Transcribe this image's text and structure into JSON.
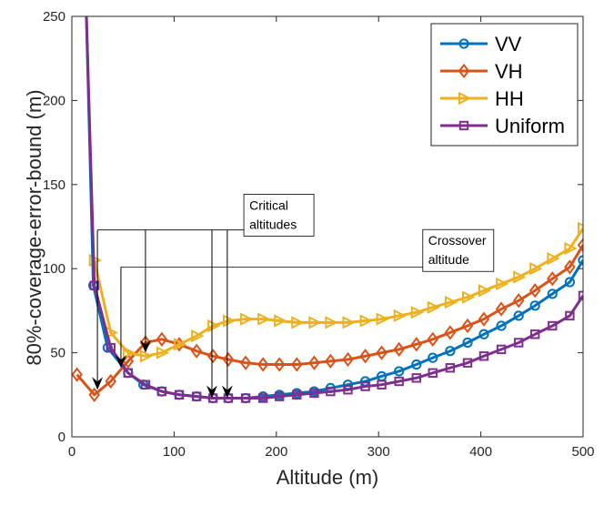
{
  "chart_data": {
    "type": "line",
    "title": "",
    "xlabel": "Altitude (m)",
    "ylabel": "80%-coverage-error-bound (m)",
    "xlim": [
      0,
      500
    ],
    "ylim": [
      0,
      250
    ],
    "xticks": [
      0,
      100,
      200,
      300,
      400,
      500
    ],
    "yticks": [
      0,
      50,
      100,
      150,
      200,
      250
    ],
    "grid": false,
    "legend_position": "top-right",
    "series": [
      {
        "name": "VV",
        "color": "#0072BD",
        "marker": "circle",
        "x": [
          21,
          35,
          55,
          70,
          88,
          105,
          122,
          138,
          153,
          170,
          187,
          203,
          220,
          237,
          253,
          270,
          287,
          303,
          320,
          337,
          353,
          370,
          387,
          403,
          420,
          437,
          453,
          470,
          487,
          500
        ],
        "y": [
          90,
          53,
          38,
          31,
          27,
          25,
          24,
          23,
          23,
          23,
          24,
          25,
          26,
          27,
          29,
          31,
          33,
          36,
          39,
          43,
          47,
          51,
          56,
          61,
          66,
          72,
          78,
          85,
          92,
          105
        ]
      },
      {
        "name": "VH",
        "color": "#D95319",
        "marker": "diamond",
        "x": [
          5,
          22,
          38,
          55,
          72,
          88,
          105,
          122,
          138,
          153,
          170,
          187,
          203,
          220,
          237,
          253,
          270,
          287,
          303,
          320,
          337,
          353,
          370,
          387,
          403,
          420,
          437,
          453,
          470,
          487,
          500
        ],
        "y": [
          37,
          25,
          33,
          45,
          56,
          58,
          55,
          51,
          48,
          46,
          44,
          43,
          43,
          43,
          44,
          45,
          46,
          48,
          50,
          52,
          55,
          58,
          62,
          66,
          70,
          76,
          81,
          87,
          94,
          101,
          114
        ]
      },
      {
        "name": "HH",
        "color": "#EDB120",
        "marker": "triangle-right",
        "x": [
          22,
          38,
          55,
          72,
          88,
          105,
          122,
          138,
          153,
          170,
          187,
          203,
          220,
          237,
          253,
          270,
          287,
          303,
          320,
          337,
          353,
          370,
          387,
          403,
          420,
          437,
          453,
          470,
          487,
          500
        ],
        "y": [
          105,
          62,
          50,
          48,
          50,
          55,
          60,
          66,
          69,
          70,
          70,
          69,
          68,
          68,
          68,
          68,
          69,
          70,
          72,
          74,
          77,
          80,
          83,
          87,
          91,
          95,
          100,
          106,
          112,
          124
        ]
      },
      {
        "name": "Uniform",
        "color": "#7E2F8E",
        "marker": "square",
        "x": [
          22,
          38,
          55,
          72,
          88,
          105,
          122,
          138,
          153,
          170,
          187,
          203,
          220,
          237,
          253,
          270,
          287,
          303,
          320,
          337,
          353,
          370,
          387,
          403,
          420,
          437,
          453,
          470,
          487,
          500
        ],
        "y": [
          90,
          53,
          38,
          31,
          27,
          25,
          24,
          23,
          23,
          23,
          23,
          24,
          25,
          26,
          27,
          28,
          30,
          31,
          33,
          35,
          38,
          41,
          44,
          48,
          52,
          56,
          61,
          66,
          72,
          84
        ]
      }
    ],
    "steep_start": {
      "x": 14,
      "y_vv_top": 255,
      "y_vh_top": 255
    },
    "annotations": [
      {
        "text_lines": [
          "Critical",
          "altitudes"
        ],
        "anchor_data": [
          170,
          141
        ],
        "bracket_y_data": 123,
        "arrow_targets": [
          [
            25,
            28
          ],
          [
            72,
            50
          ],
          [
            137,
            23
          ],
          [
            152,
            23
          ]
        ]
      },
      {
        "text_lines": [
          "Crossover",
          "altitude"
        ],
        "anchor_data": [
          345,
          120
        ],
        "bracket_y_data": 101,
        "arrow_targets": [
          [
            48,
            41
          ]
        ]
      }
    ]
  }
}
